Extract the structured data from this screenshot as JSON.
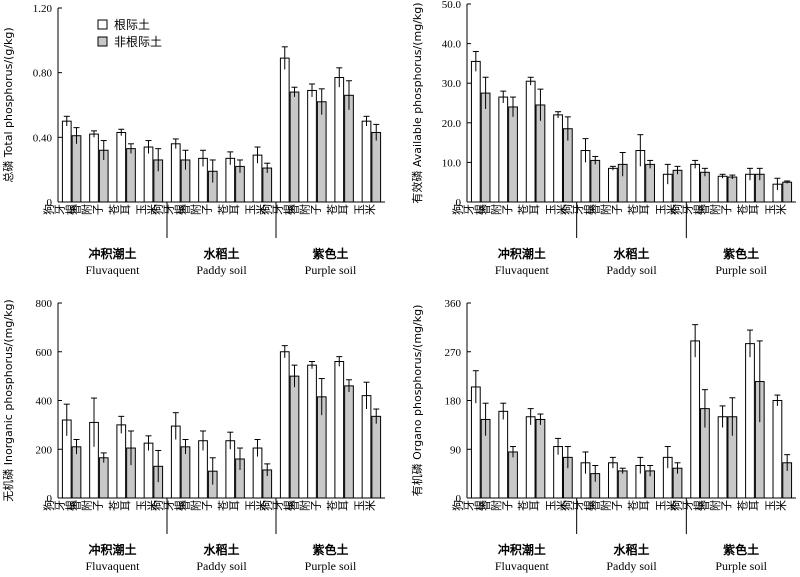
{
  "legend": {
    "rhizosphere": "根际土",
    "bulk": "非根际土"
  },
  "colors": {
    "rhizosphere": "#ffffff",
    "bulk": "#c8c8c8"
  },
  "groups": [
    {
      "cn": "冲积潮土",
      "en": "Fluvaquent"
    },
    {
      "cn": "水稻土",
      "en": "Paddy soil"
    },
    {
      "cn": "紫色土",
      "en": "Purple soil"
    }
  ],
  "chart_data": [
    {
      "type": "bar",
      "ylabel": "总磷 Total phosphorus/(g/kg)",
      "ylim": [
        0,
        1.2
      ],
      "yticks": [
        "0",
        "0.40",
        "0.80",
        "1.20"
      ],
      "ytick_values": [
        0,
        0.4,
        0.8,
        1.2
      ],
      "categories": [
        "狗牙根",
        "香附子",
        "苍耳",
        "玉米",
        "狗牙根",
        "香附子",
        "苍耳",
        "玉米",
        "狗牙根",
        "香附子",
        "苍耳",
        "玉米"
      ],
      "series": [
        {
          "name": "根际土",
          "values": [
            0.5,
            0.42,
            0.43,
            0.34,
            0.36,
            0.27,
            0.27,
            0.29,
            0.89,
            0.69,
            0.77,
            0.5
          ],
          "errors": [
            0.03,
            0.02,
            0.02,
            0.04,
            0.03,
            0.05,
            0.04,
            0.05,
            0.07,
            0.04,
            0.06,
            0.03
          ]
        },
        {
          "name": "非根际土",
          "values": [
            0.41,
            0.32,
            0.33,
            0.26,
            0.26,
            0.19,
            0.22,
            0.21,
            0.68,
            0.62,
            0.66,
            0.43
          ],
          "errors": [
            0.05,
            0.06,
            0.03,
            0.07,
            0.06,
            0.07,
            0.04,
            0.03,
            0.03,
            0.08,
            0.09,
            0.05
          ]
        }
      ]
    },
    {
      "type": "bar",
      "ylabel": "有效磷 Available phosphorus/(mg/kg)",
      "ylim": [
        0,
        50
      ],
      "yticks": [
        "0",
        "10.0",
        "20.0",
        "30.0",
        "40.0",
        "50.0"
      ],
      "ytick_values": [
        0,
        10,
        20,
        30,
        40,
        50
      ],
      "categories": [
        "狗牙根",
        "香附子",
        "苍耳",
        "玉米",
        "狗牙根",
        "香附子",
        "苍耳",
        "玉米",
        "狗牙根",
        "香附子",
        "苍耳",
        "玉米"
      ],
      "series": [
        {
          "name": "根际土",
          "values": [
            35.5,
            26.5,
            30.5,
            22.0,
            13.0,
            8.5,
            13.0,
            7.0,
            9.5,
            6.5,
            7.0,
            4.5
          ],
          "errors": [
            2.5,
            1.5,
            1.0,
            0.8,
            3.0,
            0.5,
            4.0,
            2.5,
            1.0,
            0.5,
            1.5,
            1.5
          ]
        },
        {
          "name": "非根际土",
          "values": [
            27.5,
            24.0,
            24.5,
            18.5,
            10.5,
            9.5,
            9.5,
            8.0,
            7.5,
            6.3,
            7.0,
            5.0
          ],
          "errors": [
            4.0,
            2.5,
            4.0,
            3.0,
            1.0,
            3.0,
            1.0,
            1.0,
            1.0,
            0.5,
            1.5,
            0.3
          ]
        }
      ]
    },
    {
      "type": "bar",
      "ylabel": "无机磷 Inorganic phosphorus/(mg/kg)",
      "ylim": [
        0,
        800
      ],
      "yticks": [
        "0",
        "200",
        "400",
        "600",
        "800"
      ],
      "ytick_values": [
        0,
        200,
        400,
        600,
        800
      ],
      "categories": [
        "狗牙根",
        "香附子",
        "苍耳",
        "玉米",
        "狗牙根",
        "香附子",
        "苍耳",
        "玉米",
        "狗牙根",
        "香附子",
        "苍耳",
        "玉米"
      ],
      "series": [
        {
          "name": "根际土",
          "values": [
            320,
            310,
            300,
            225,
            295,
            235,
            235,
            205,
            600,
            545,
            560,
            420
          ],
          "errors": [
            65,
            100,
            35,
            30,
            55,
            40,
            35,
            35,
            25,
            15,
            20,
            55
          ]
        },
        {
          "name": "非根际土",
          "values": [
            210,
            165,
            205,
            130,
            210,
            110,
            160,
            115,
            500,
            415,
            460,
            335
          ],
          "errors": [
            30,
            20,
            70,
            65,
            30,
            55,
            45,
            25,
            45,
            75,
            25,
            30
          ]
        }
      ]
    },
    {
      "type": "bar",
      "ylabel": "有机磷 Organo phosphorus/(mg/kg)",
      "ylim": [
        0,
        360
      ],
      "yticks": [
        "0",
        "90",
        "180",
        "270",
        "360"
      ],
      "ytick_values": [
        0,
        90,
        180,
        270,
        360
      ],
      "categories": [
        "狗牙根",
        "香附子",
        "苍耳",
        "玉米",
        "狗牙根",
        "香附子",
        "苍耳",
        "玉米",
        "狗牙根",
        "香附子",
        "苍耳",
        "玉米"
      ],
      "series": [
        {
          "name": "根际土",
          "values": [
            205,
            160,
            150,
            95,
            65,
            65,
            60,
            75,
            290,
            150,
            285,
            180
          ],
          "errors": [
            30,
            15,
            15,
            15,
            20,
            10,
            15,
            20,
            30,
            20,
            25,
            10
          ]
        },
        {
          "name": "非根际土",
          "values": [
            145,
            85,
            145,
            75,
            45,
            50,
            50,
            55,
            165,
            150,
            215,
            65
          ],
          "errors": [
            30,
            10,
            10,
            20,
            15,
            5,
            10,
            10,
            35,
            35,
            75,
            15
          ]
        }
      ]
    }
  ]
}
